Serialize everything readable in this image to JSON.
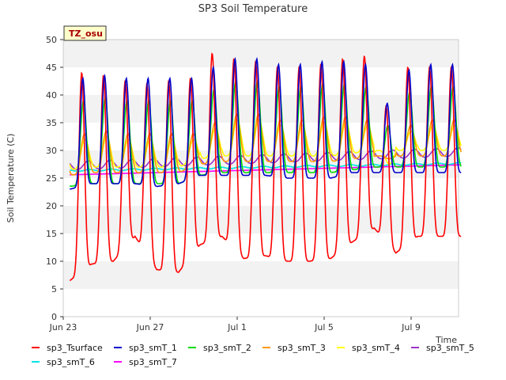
{
  "chart_data": {
    "type": "line",
    "title": "SP3 Soil Temperature",
    "ylabel": "Soil Temperature (C)",
    "xlabel": "Time",
    "annotation": "TZ_osu",
    "xlim": [
      0,
      18.2
    ],
    "ylim": [
      0,
      50
    ],
    "xticks": [
      {
        "value": 0,
        "label": "Jun 23"
      },
      {
        "value": 4,
        "label": "Jun 27"
      },
      {
        "value": 8,
        "label": "Jul 1"
      },
      {
        "value": 12,
        "label": "Jul 5"
      },
      {
        "value": 16,
        "label": "Jul 9"
      }
    ],
    "yticks": [
      0,
      5,
      10,
      15,
      20,
      25,
      30,
      35,
      40,
      45,
      50
    ],
    "grid": "horizontal bands",
    "legend_position": "bottom",
    "day_start": 0.3,
    "days": 18,
    "series": [
      {
        "name": "sp3_Tsurface",
        "color": "#ff0000",
        "min": [
          6.5,
          9.5,
          10,
          14.5,
          8.5,
          8,
          13,
          14.5,
          10.5,
          11,
          10,
          10,
          10.5,
          13.5,
          16,
          11.5,
          14.5,
          14.5
        ],
        "max": [
          44,
          43.5,
          42.5,
          42,
          42.5,
          43,
          47.5,
          46.5,
          46,
          45,
          45,
          45.5,
          46.5,
          47,
          38,
          45,
          45,
          45
        ]
      },
      {
        "name": "sp3_smT_1",
        "color": "#0000cc",
        "min": [
          23,
          24,
          24,
          24,
          23.5,
          24,
          25.5,
          25.5,
          25.5,
          25.5,
          25,
          25,
          25,
          26,
          26,
          26,
          26,
          26
        ],
        "max": [
          43,
          43.5,
          43,
          43,
          43,
          43,
          45,
          46.5,
          46.5,
          45.5,
          45.5,
          46,
          46,
          45.5,
          38.5,
          44.5,
          45.5,
          45.5
        ]
      },
      {
        "name": "sp3_smT_2",
        "color": "#00dd00",
        "min": [
          23.5,
          24,
          24,
          24,
          24,
          24,
          25.5,
          26,
          26,
          26,
          26,
          26,
          26,
          26.5,
          27,
          27,
          27,
          27
        ]
      }
    ]
  },
  "series_extra": [
    {
      "name": "sp3_smT_3",
      "color": "#ff9900"
    },
    {
      "name": "sp3_smT_4",
      "color": "#ffff00"
    },
    {
      "name": "sp3_smT_5",
      "color": "#9933cc"
    },
    {
      "name": "sp3_smT_6",
      "color": "#00e5e5"
    },
    {
      "name": "sp3_smT_7",
      "color": "#ff00ff"
    }
  ]
}
